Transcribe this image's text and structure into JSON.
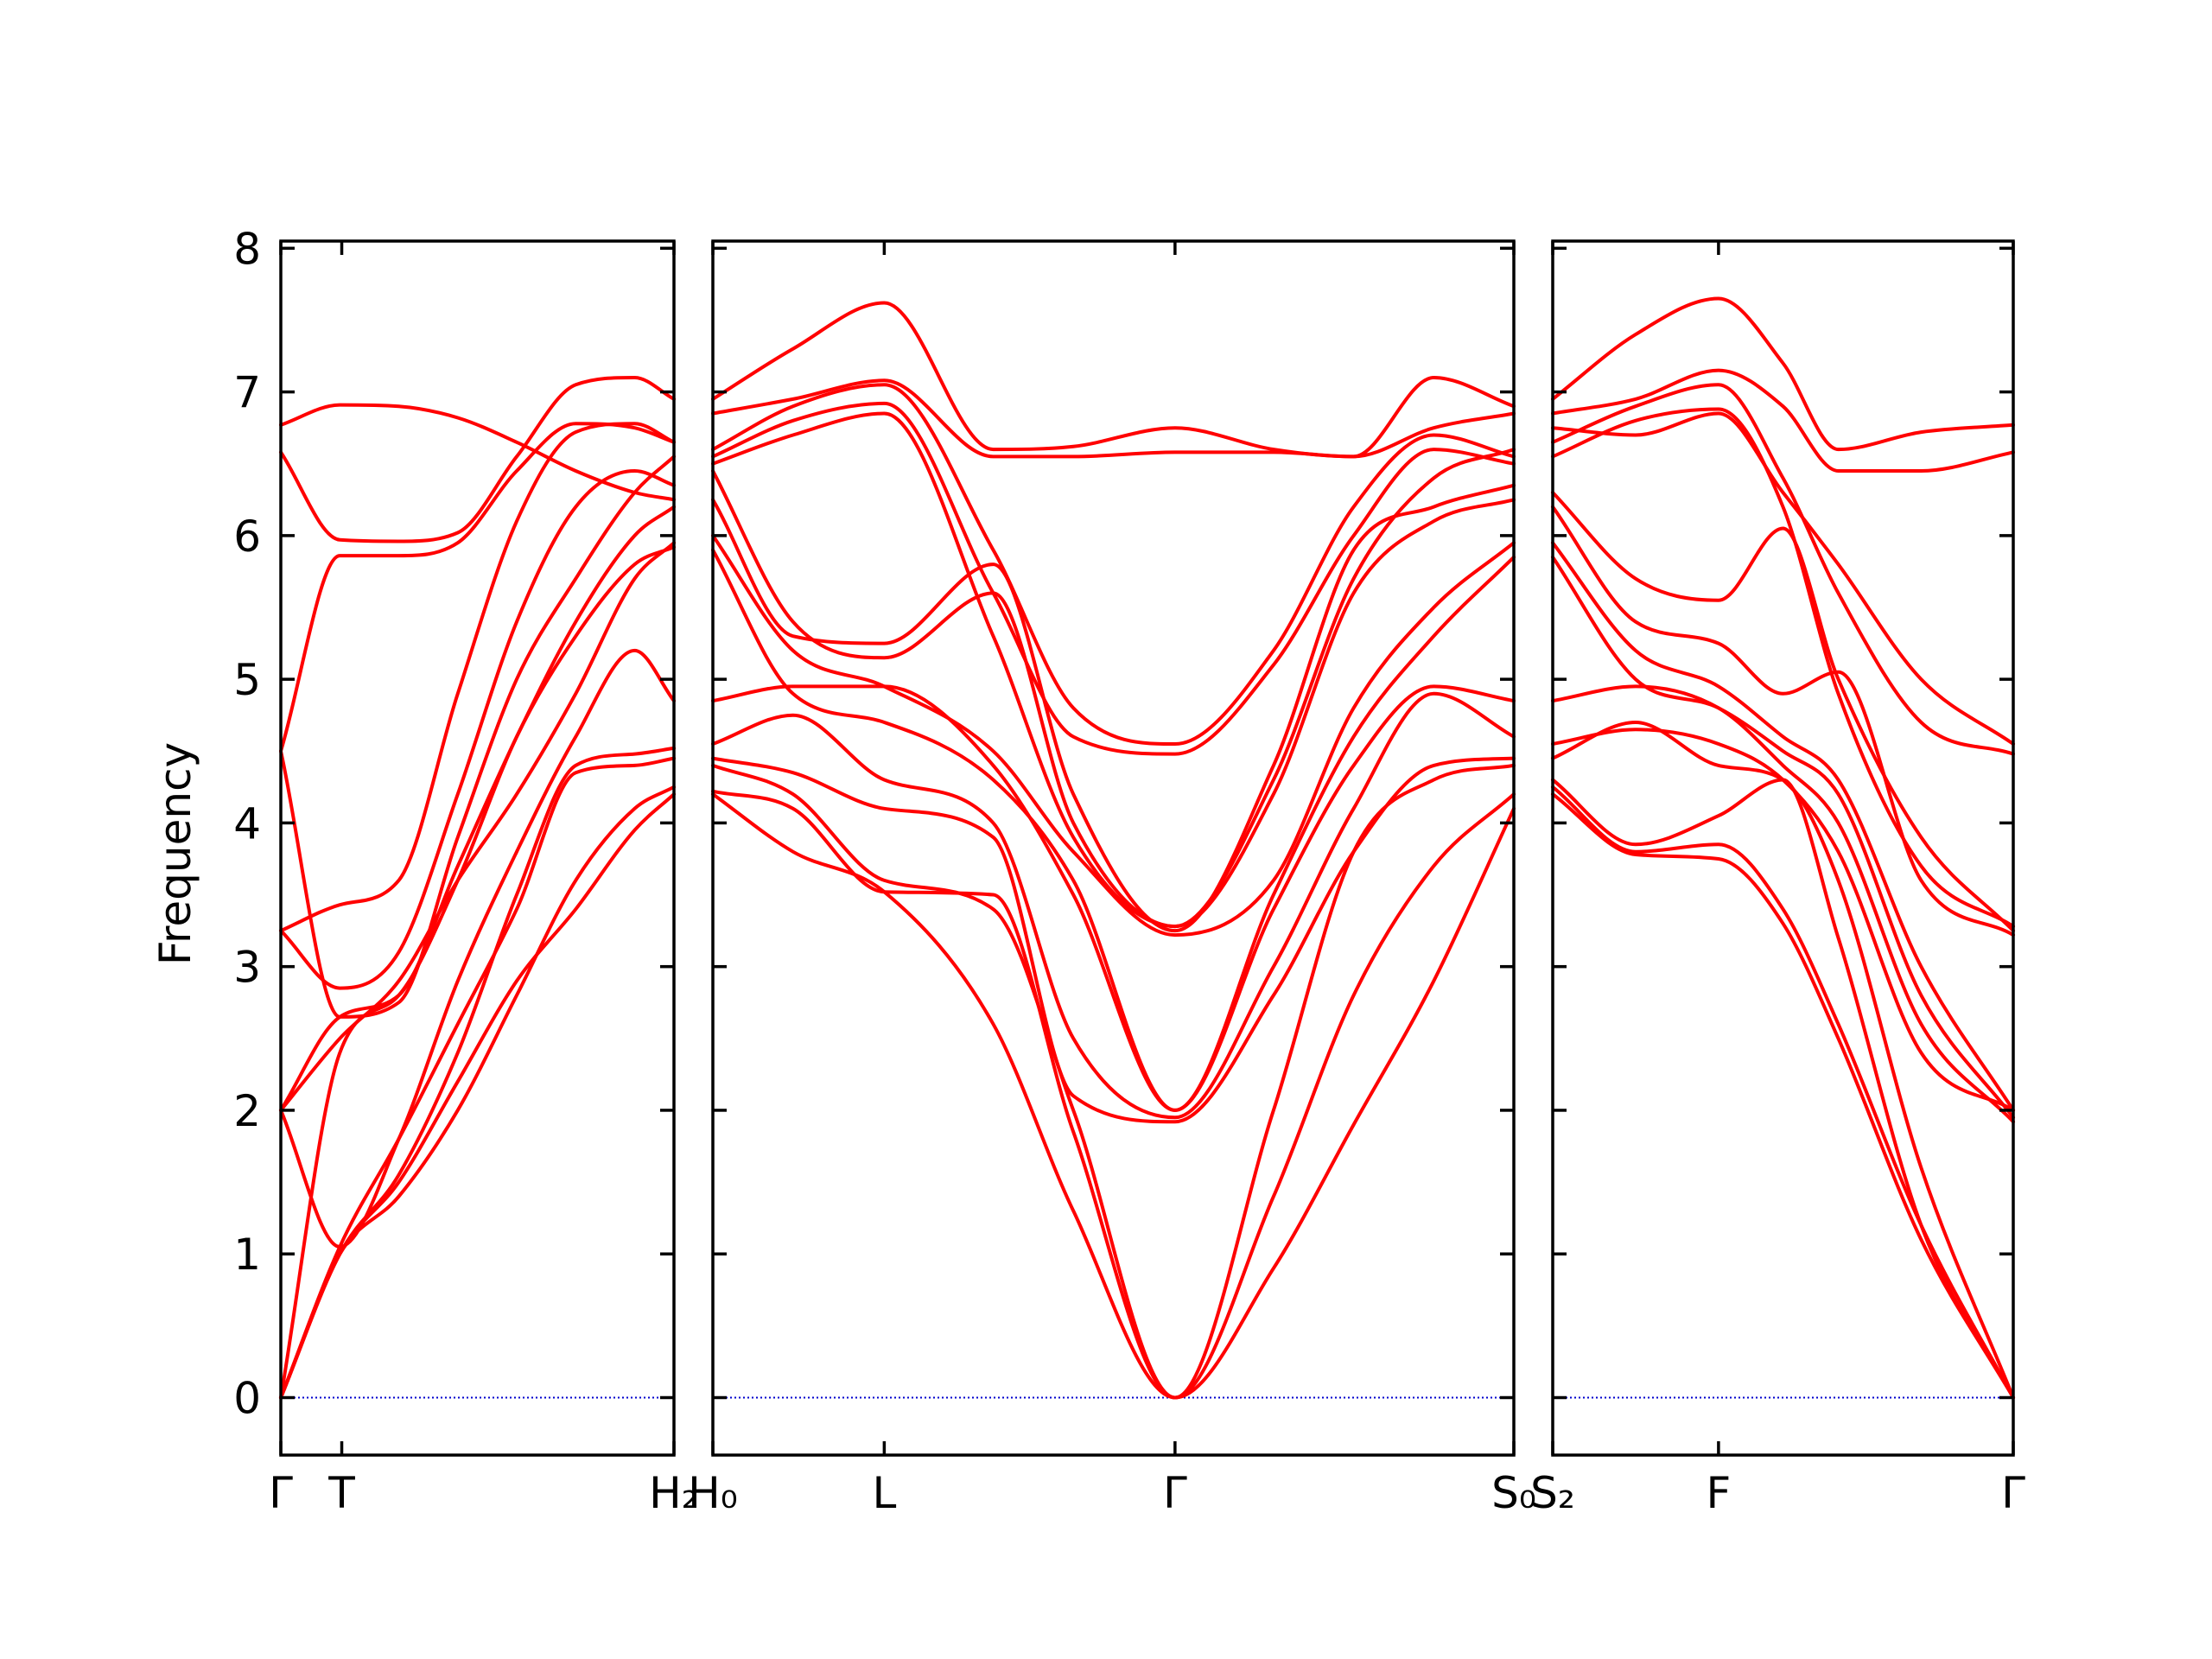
{
  "chart_data": {
    "type": "line",
    "ylabel": "Frequency",
    "ylim": [
      -0.4,
      8.05
    ],
    "yticks": [
      0,
      1,
      2,
      3,
      4,
      5,
      6,
      7,
      8
    ],
    "colors": {
      "bands": "#ff0000",
      "zero_line": "#0000cc",
      "axes": "#000000"
    },
    "panels": [
      {
        "id": "panel-1",
        "xlim": [
          0,
          1
        ],
        "ticks": [
          {
            "x": 0.0,
            "label": "Γ"
          },
          {
            "x": 0.155,
            "label": "T"
          },
          {
            "x": 1.0,
            "label": "H₂"
          }
        ],
        "series": [
          {
            "x": [
              0,
              0.15,
              0.3,
              0.45,
              0.6,
              0.75,
              0.9,
              1
            ],
            "values": [
              6.77,
              6.91,
              6.9,
              6.82,
              6.65,
              6.45,
              6.3,
              6.25
            ]
          },
          {
            "x": [
              0,
              0.15,
              0.3,
              0.45,
              0.6,
              0.75,
              0.9,
              1
            ],
            "values": [
              6.58,
              5.97,
              5.96,
              6.02,
              6.55,
              7.05,
              7.1,
              6.95
            ]
          },
          {
            "x": [
              0,
              0.15,
              0.3,
              0.45,
              0.6,
              0.75,
              0.9,
              1
            ],
            "values": [
              4.5,
              5.86,
              5.86,
              5.95,
              6.45,
              6.78,
              6.75,
              6.65
            ]
          },
          {
            "x": [
              0,
              0.15,
              0.3,
              0.45,
              0.6,
              0.75,
              0.9,
              1
            ],
            "values": [
              4.5,
              2.65,
              2.75,
              3.9,
              5.0,
              5.7,
              6.3,
              6.55
            ]
          },
          {
            "x": [
              0,
              0.15,
              0.3,
              0.45,
              0.6,
              0.75,
              0.9,
              1
            ],
            "values": [
              3.25,
              3.43,
              3.6,
              4.9,
              6.1,
              6.72,
              6.78,
              6.65
            ]
          },
          {
            "x": [
              0,
              0.15,
              0.3,
              0.45,
              0.6,
              0.75,
              0.9,
              1
            ],
            "values": [
              3.25,
              2.85,
              3.1,
              4.2,
              5.4,
              6.2,
              6.45,
              6.35
            ]
          },
          {
            "x": [
              0,
              0.15,
              0.3,
              0.45,
              0.6,
              0.75,
              0.9,
              1
            ],
            "values": [
              2.0,
              2.65,
              2.8,
              3.7,
              4.6,
              5.4,
              6.0,
              6.2
            ]
          },
          {
            "x": [
              0,
              0.15,
              0.3,
              0.45,
              0.6,
              0.75,
              0.9,
              1
            ],
            "values": [
              2.0,
              2.5,
              2.9,
              3.6,
              4.2,
              4.9,
              5.7,
              5.95
            ]
          },
          {
            "x": [
              0,
              0.15,
              0.3,
              0.45,
              0.6,
              0.75,
              0.9,
              1
            ],
            "values": [
              2.0,
              1.05,
              1.8,
              2.9,
              3.8,
              4.6,
              5.2,
              4.85
            ]
          },
          {
            "x": [
              0,
              0.15,
              0.3,
              0.45,
              0.6,
              0.75,
              0.9,
              1
            ],
            "values": [
              0.0,
              2.4,
              2.8,
              3.6,
              4.6,
              5.3,
              5.8,
              5.92
            ]
          },
          {
            "x": [
              0,
              0.15,
              0.3,
              0.45,
              0.6,
              0.75,
              0.9,
              1
            ],
            "values": [
              0.0,
              1.0,
              1.55,
              2.4,
              3.5,
              4.4,
              4.48,
              4.52
            ]
          },
          {
            "x": [
              0,
              0.15,
              0.3,
              0.45,
              0.6,
              0.75,
              0.9,
              1
            ],
            "values": [
              0.0,
              1.05,
              1.8,
              2.6,
              3.4,
              4.35,
              4.4,
              4.45
            ]
          },
          {
            "x": [
              0,
              0.15,
              0.3,
              0.45,
              0.6,
              0.75,
              0.9,
              1
            ],
            "values": [
              0.0,
              1.0,
              1.4,
              2.0,
              2.8,
              3.6,
              4.1,
              4.25
            ]
          },
          {
            "x": [
              0,
              0.15,
              0.3,
              0.45,
              0.6,
              0.75,
              0.9,
              1
            ],
            "values": [
              0.0,
              1.0,
              1.5,
              2.2,
              2.9,
              3.4,
              3.95,
              4.2
            ]
          }
        ]
      },
      {
        "id": "panel-2",
        "xlim": [
          0,
          1
        ],
        "ticks": [
          {
            "x": 0.0,
            "label": "H₀"
          },
          {
            "x": 0.214,
            "label": "L"
          },
          {
            "x": 0.577,
            "label": "Γ"
          },
          {
            "x": 1.0,
            "label": "S₀"
          }
        ],
        "series": [
          {
            "x": [
              0,
              0.1,
              0.214,
              0.35,
              0.45,
              0.577,
              0.7,
              0.8,
              0.9,
              1
            ],
            "values": [
              6.95,
              7.3,
              7.62,
              6.6,
              6.62,
              6.75,
              6.6,
              6.55,
              7.1,
              6.9
            ]
          },
          {
            "x": [
              0,
              0.1,
              0.214,
              0.35,
              0.45,
              0.577,
              0.7,
              0.8,
              0.9,
              1
            ],
            "values": [
              6.85,
              6.95,
              7.08,
              6.55,
              6.55,
              6.58,
              6.58,
              6.55,
              6.75,
              6.85
            ]
          },
          {
            "x": [
              0,
              0.1,
              0.214,
              0.35,
              0.45,
              0.577,
              0.7,
              0.8,
              0.9,
              1
            ],
            "values": [
              6.6,
              6.9,
              7.05,
              5.9,
              4.8,
              4.55,
              5.2,
              6.2,
              6.7,
              6.55
            ]
          },
          {
            "x": [
              0,
              0.1,
              0.214,
              0.35,
              0.45,
              0.577,
              0.7,
              0.8,
              0.9,
              1
            ],
            "values": [
              6.55,
              6.8,
              6.92,
              5.6,
              4.6,
              4.48,
              5.1,
              6.0,
              6.6,
              6.5
            ]
          },
          {
            "x": [
              0,
              0.1,
              0.214,
              0.35,
              0.45,
              0.577,
              0.7,
              0.8,
              0.9,
              1
            ],
            "values": [
              6.5,
              6.7,
              6.85,
              5.3,
              3.9,
              3.28,
              4.3,
              5.7,
              6.4,
              6.6
            ]
          },
          {
            "x": [
              0,
              0.1,
              0.214,
              0.35,
              0.45,
              0.577,
              0.7,
              0.8,
              0.9,
              1
            ],
            "values": [
              6.25,
              5.3,
              5.25,
              5.8,
              4.2,
              3.25,
              4.4,
              5.9,
              6.2,
              6.35
            ]
          },
          {
            "x": [
              0,
              0.1,
              0.214,
              0.35,
              0.45,
              0.577,
              0.7,
              0.8,
              0.9,
              1
            ],
            "values": [
              6.45,
              5.4,
              5.15,
              5.6,
              4.0,
              3.28,
              4.2,
              5.6,
              6.1,
              6.25
            ]
          },
          {
            "x": [
              0,
              0.1,
              0.214,
              0.35,
              0.45,
              0.577,
              0.7,
              0.8,
              0.9,
              1
            ],
            "values": [
              6.0,
              5.2,
              4.95,
              4.5,
              3.8,
              3.22,
              3.6,
              4.8,
              5.5,
              5.95
            ]
          },
          {
            "x": [
              0,
              0.1,
              0.214,
              0.35,
              0.45,
              0.577,
              0.7,
              0.8,
              0.9,
              1
            ],
            "values": [
              5.9,
              4.9,
              4.7,
              4.3,
              3.6,
              2.0,
              3.5,
              4.6,
              5.3,
              5.85
            ]
          },
          {
            "x": [
              0,
              0.1,
              0.214,
              0.35,
              0.45,
              0.577,
              0.7,
              0.8,
              0.9,
              1
            ],
            "values": [
              4.85,
              4.95,
              4.95,
              4.4,
              3.5,
              2.0,
              3.4,
              4.4,
              4.95,
              4.85
            ]
          },
          {
            "x": [
              0,
              0.1,
              0.214,
              0.35,
              0.45,
              0.577,
              0.7,
              0.8,
              0.9,
              1
            ],
            "values": [
              4.55,
              4.75,
              4.3,
              4.0,
              2.5,
              1.95,
              3.0,
              4.1,
              4.9,
              4.6
            ]
          },
          {
            "x": [
              0,
              0.1,
              0.214,
              0.35,
              0.45,
              0.577,
              0.7,
              0.8,
              0.9,
              1
            ],
            "values": [
              4.45,
              4.35,
              4.1,
              3.9,
              2.1,
              1.92,
              2.8,
              3.8,
              4.4,
              4.45
            ]
          },
          {
            "x": [
              0,
              0.1,
              0.214,
              0.35,
              0.45,
              0.577,
              0.7,
              0.8,
              0.9,
              1
            ],
            "values": [
              4.4,
              4.2,
              3.6,
              3.4,
              2.0,
              0.0,
              2.0,
              3.8,
              4.3,
              4.4
            ]
          },
          {
            "x": [
              0,
              0.1,
              0.214,
              0.35,
              0.45,
              0.577,
              0.7,
              0.8,
              0.9,
              1
            ],
            "values": [
              4.22,
              4.1,
              3.52,
              3.5,
              1.85,
              0.0,
              1.4,
              2.8,
              3.7,
              4.2
            ]
          },
          {
            "x": [
              0,
              0.1,
              0.214,
              0.35,
              0.45,
              0.577,
              0.7,
              0.8,
              0.9,
              1
            ],
            "values": [
              4.2,
              3.8,
              3.52,
              2.6,
              1.3,
              0.0,
              0.9,
              1.9,
              2.9,
              4.1
            ]
          }
        ]
      },
      {
        "id": "panel-3",
        "xlim": [
          0,
          1
        ],
        "ticks": [
          {
            "x": 0.0,
            "label": "S₂"
          },
          {
            "x": 0.36,
            "label": "F"
          },
          {
            "x": 1.0,
            "label": "Γ"
          }
        ],
        "series": [
          {
            "x": [
              0,
              0.18,
              0.36,
              0.5,
              0.62,
              0.8,
              1
            ],
            "values": [
              6.95,
              7.4,
              7.65,
              7.2,
              6.6,
              6.72,
              6.77
            ]
          },
          {
            "x": [
              0,
              0.18,
              0.36,
              0.5,
              0.62,
              0.8,
              1
            ],
            "values": [
              6.85,
              6.95,
              7.15,
              6.9,
              6.45,
              6.45,
              6.58
            ]
          },
          {
            "x": [
              0,
              0.18,
              0.36,
              0.5,
              0.62,
              0.8,
              1
            ],
            "values": [
              6.75,
              6.7,
              6.85,
              6.3,
              5.8,
              5.0,
              4.55
            ]
          },
          {
            "x": [
              0,
              0.18,
              0.36,
              0.5,
              0.62,
              0.8,
              1
            ],
            "values": [
              6.65,
              6.9,
              7.05,
              6.4,
              5.6,
              4.7,
              4.48
            ]
          },
          {
            "x": [
              0,
              0.18,
              0.36,
              0.5,
              0.62,
              0.8,
              1
            ],
            "values": [
              6.55,
              6.8,
              6.88,
              6.2,
              4.9,
              3.7,
              3.28
            ]
          },
          {
            "x": [
              0,
              0.18,
              0.36,
              0.5,
              0.62,
              0.8,
              1
            ],
            "values": [
              6.3,
              5.7,
              5.55,
              6.05,
              5.0,
              3.9,
              3.25
            ]
          },
          {
            "x": [
              0,
              0.18,
              0.36,
              0.5,
              0.62,
              0.8,
              1
            ],
            "values": [
              6.2,
              5.4,
              5.25,
              4.9,
              5.05,
              3.6,
              3.22
            ]
          },
          {
            "x": [
              0,
              0.18,
              0.36,
              0.5,
              0.62,
              0.8,
              1
            ],
            "values": [
              5.95,
              5.2,
              4.95,
              4.6,
              4.3,
              3.0,
              2.0
            ]
          },
          {
            "x": [
              0,
              0.18,
              0.36,
              0.5,
              0.62,
              0.8,
              1
            ],
            "values": [
              5.85,
              5.0,
              4.8,
              4.5,
              4.2,
              2.8,
              1.95
            ]
          },
          {
            "x": [
              0,
              0.18,
              0.36,
              0.5,
              0.62,
              0.8,
              1
            ],
            "values": [
              4.85,
              4.95,
              4.8,
              4.4,
              4.0,
              2.6,
              1.92
            ]
          },
          {
            "x": [
              0,
              0.18,
              0.36,
              0.5,
              0.62,
              0.8,
              1
            ],
            "values": [
              4.55,
              4.65,
              4.55,
              4.3,
              3.8,
              2.4,
              2.0
            ]
          },
          {
            "x": [
              0,
              0.18,
              0.36,
              0.5,
              0.62,
              0.8,
              1
            ],
            "values": [
              4.45,
              4.7,
              4.4,
              4.3,
              3.6,
              1.6,
              0.0
            ]
          },
          {
            "x": [
              0,
              0.18,
              0.36,
              0.5,
              0.62,
              0.8,
              1
            ],
            "values": [
              4.3,
              3.85,
              4.05,
              4.3,
              3.2,
              1.2,
              0.0
            ]
          },
          {
            "x": [
              0,
              0.18,
              0.36,
              0.5,
              0.62,
              0.8,
              1
            ],
            "values": [
              4.25,
              3.8,
              3.85,
              3.4,
              2.6,
              1.2,
              0.0
            ]
          },
          {
            "x": [
              0,
              0.18,
              0.36,
              0.5,
              0.62,
              0.8,
              1
            ],
            "values": [
              4.2,
              3.78,
              3.75,
              3.3,
              2.5,
              1.1,
              0.0
            ]
          }
        ]
      }
    ]
  }
}
